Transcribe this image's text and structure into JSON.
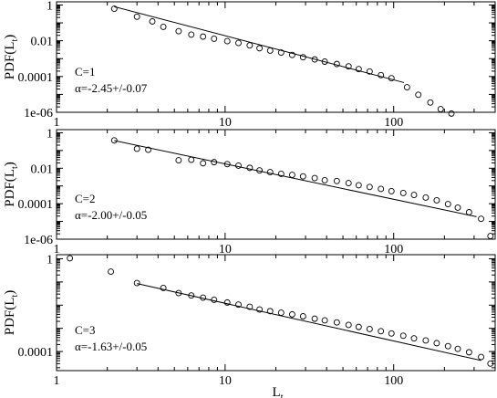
{
  "chart_data": [
    {
      "type": "scatter",
      "xscale": "log",
      "yscale": "log",
      "xlim": [
        1,
        400
      ],
      "ylim": [
        1e-06,
        1.5
      ],
      "xticks": [
        {
          "v": 1,
          "label": "1"
        },
        {
          "v": 10,
          "label": "10"
        },
        {
          "v": 100,
          "label": "100"
        }
      ],
      "yticks": [
        {
          "v": 1,
          "label": "1"
        },
        {
          "v": 0.01,
          "label": "0.01"
        },
        {
          "v": 0.0001,
          "label": "0.0001"
        },
        {
          "v": 1e-06,
          "label": "1e-06"
        }
      ],
      "ylabel_main": "PDF(L",
      "ylabel_sub": "t",
      "ylabel_close": ")",
      "annotation_c": "C=1",
      "annotation_alpha": "α=-2.45+/-0.07",
      "points": [
        [
          2.2,
          0.62
        ],
        [
          3.0,
          0.22
        ],
        [
          3.7,
          0.12
        ],
        [
          4.3,
          0.06
        ],
        [
          5.3,
          0.034
        ],
        [
          6.3,
          0.022
        ],
        [
          7.4,
          0.017
        ],
        [
          8.6,
          0.013
        ],
        [
          10.3,
          0.0095
        ],
        [
          12.0,
          0.0075
        ],
        [
          14.0,
          0.0055
        ],
        [
          16.0,
          0.0038
        ],
        [
          18.5,
          0.0028
        ],
        [
          21.5,
          0.0022
        ],
        [
          25.0,
          0.0016
        ],
        [
          29.0,
          0.0012
        ],
        [
          34.0,
          0.0009
        ],
        [
          39.0,
          0.00068
        ],
        [
          46.0,
          0.0005
        ],
        [
          54.0,
          0.00037
        ],
        [
          62.0,
          0.00026
        ],
        [
          72.0,
          0.00019
        ],
        [
          84.0,
          0.00012
        ],
        [
          97.0,
          8e-05
        ],
        [
          120.0,
          2.5e-05
        ],
        [
          140.0,
          9.5e-06
        ],
        [
          165.0,
          3.5e-06
        ],
        [
          190.0,
          1.5e-06
        ],
        [
          220.0,
          8.5e-07
        ]
      ],
      "fit": [
        [
          2.2,
          0.8
        ],
        [
          115.0,
          4.6e-05
        ]
      ]
    },
    {
      "type": "scatter",
      "xscale": "log",
      "yscale": "log",
      "xlim": [
        1,
        400
      ],
      "ylim": [
        1e-06,
        1.5
      ],
      "xticks": [
        {
          "v": 1,
          "label": "1"
        },
        {
          "v": 10,
          "label": "10"
        },
        {
          "v": 100,
          "label": "100"
        }
      ],
      "yticks": [
        {
          "v": 1,
          "label": "1"
        },
        {
          "v": 0.01,
          "label": "0.01"
        },
        {
          "v": 0.0001,
          "label": "0.0001"
        },
        {
          "v": 1e-06,
          "label": "1e-06"
        }
      ],
      "ylabel_main": "PDF(L",
      "ylabel_sub": "t",
      "ylabel_close": ")",
      "annotation_c": "C=2",
      "annotation_alpha": "α=-2.00+/-0.05",
      "points": [
        [
          2.2,
          0.37
        ],
        [
          3.0,
          0.125
        ],
        [
          3.5,
          0.11
        ],
        [
          5.3,
          0.028
        ],
        [
          6.3,
          0.03
        ],
        [
          7.4,
          0.019
        ],
        [
          8.6,
          0.022
        ],
        [
          10.3,
          0.017
        ],
        [
          12.0,
          0.014
        ],
        [
          14.0,
          0.0105
        ],
        [
          16.0,
          0.0075
        ],
        [
          18.5,
          0.006
        ],
        [
          21.5,
          0.0048
        ],
        [
          25.0,
          0.0042
        ],
        [
          29.0,
          0.0035
        ],
        [
          34.0,
          0.0028
        ],
        [
          39.0,
          0.0021
        ],
        [
          46.0,
          0.0019
        ],
        [
          54.0,
          0.00145
        ],
        [
          62.0,
          0.0011
        ],
        [
          72.0,
          0.00088
        ],
        [
          84.0,
          0.00068
        ],
        [
          97.0,
          0.00051
        ],
        [
          114.0,
          0.0004
        ],
        [
          132.0,
          0.00031
        ],
        [
          155.0,
          0.00022
        ],
        [
          180.0,
          0.000155
        ],
        [
          210.0,
          9.5e-05
        ],
        [
          240.0,
          6e-05
        ],
        [
          280.0,
          3.3e-05
        ],
        [
          330.0,
          1.4e-05
        ],
        [
          375.0,
          1.5e-06
        ]
      ],
      "fit": [
        [
          2.2,
          0.36
        ],
        [
          310.0,
          1.85e-05
        ]
      ]
    },
    {
      "type": "scatter",
      "xscale": "log",
      "yscale": "log",
      "xlim": [
        1,
        400
      ],
      "ylim": [
        1.5e-05,
        1.5
      ],
      "xticks": [
        {
          "v": 1,
          "label": "1"
        },
        {
          "v": 10,
          "label": "10"
        },
        {
          "v": 100,
          "label": "100"
        }
      ],
      "yticks": [
        {
          "v": 1,
          "label": "1"
        },
        {
          "v": 0.0001,
          "label": "0.0001"
        }
      ],
      "ylabel_main": "PDF(L",
      "ylabel_sub": "t",
      "ylabel_close": ")",
      "xlabel_main": "L",
      "xlabel_sub": "t",
      "annotation_c": "C=3",
      "annotation_alpha": "α=-1.63+/-0.05",
      "points": [
        [
          1.2,
          1.05
        ],
        [
          2.1,
          0.28
        ],
        [
          3.0,
          0.09
        ],
        [
          4.3,
          0.055
        ],
        [
          5.3,
          0.033
        ],
        [
          6.3,
          0.026
        ],
        [
          7.4,
          0.021
        ],
        [
          8.6,
          0.017
        ],
        [
          10.3,
          0.013
        ],
        [
          12.0,
          0.0105
        ],
        [
          14.0,
          0.0085
        ],
        [
          16.0,
          0.0065
        ],
        [
          18.5,
          0.0055
        ],
        [
          21.5,
          0.0047
        ],
        [
          25.0,
          0.004
        ],
        [
          29.0,
          0.0033
        ],
        [
          34.0,
          0.0026
        ],
        [
          39.0,
          0.0022
        ],
        [
          46.0,
          0.0018
        ],
        [
          54.0,
          0.0014
        ],
        [
          62.0,
          0.00115
        ],
        [
          72.0,
          0.00093
        ],
        [
          84.0,
          0.00075
        ],
        [
          97.0,
          0.0006
        ],
        [
          114.0,
          0.00048
        ],
        [
          132.0,
          0.00037
        ],
        [
          155.0,
          0.0003
        ],
        [
          180.0,
          0.00023
        ],
        [
          210.0,
          0.00017
        ],
        [
          240.0,
          0.00013
        ],
        [
          280.0,
          9.3e-05
        ],
        [
          330.0,
          5.8e-05
        ],
        [
          375.0,
          3e-05
        ]
      ],
      "fit": [
        [
          3.0,
          0.085
        ],
        [
          330.0,
          4.1e-05
        ]
      ]
    }
  ]
}
